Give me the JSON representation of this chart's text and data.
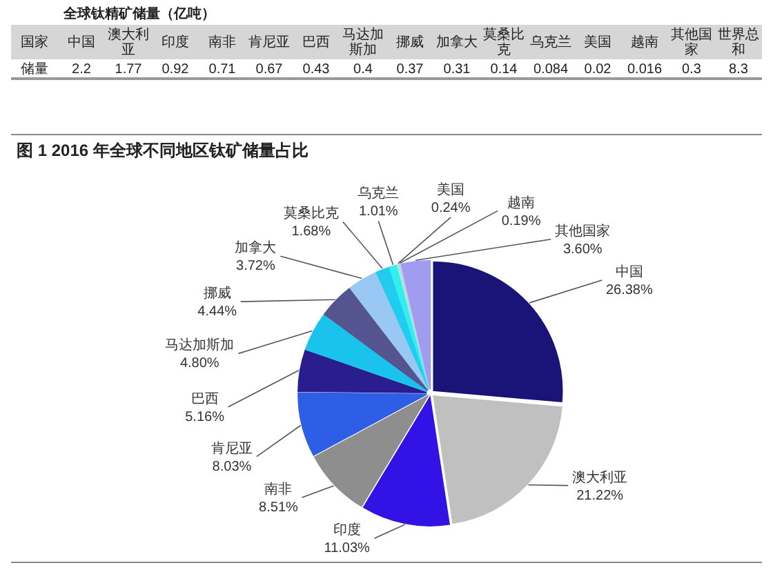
{
  "chart_data": [
    {
      "type": "other",
      "title": "全球钛精矿储量（亿吨）",
      "xlabel": "国家",
      "ylabel": "储量",
      "categories": [
        "中国",
        "澳大利亚",
        "印度",
        "南非",
        "肯尼亚",
        "巴西",
        "马达加斯加",
        "挪威",
        "加拿大",
        "莫桑比克",
        "乌克兰",
        "美国",
        "越南",
        "其他国家",
        "世界总和"
      ],
      "values": [
        2.2,
        1.77,
        0.92,
        0.71,
        0.67,
        0.43,
        0.4,
        0.37,
        0.31,
        0.14,
        0.084,
        0.02,
        0.016,
        0.3,
        8.3
      ],
      "data_labels": true
    },
    {
      "type": "pie",
      "title": "图 1 2016 年全球不同地区钛矿储量占比",
      "categories": [
        "中国",
        "澳大利亚",
        "印度",
        "南非",
        "肯尼亚",
        "巴西",
        "马达加斯加",
        "挪威",
        "加拿大",
        "莫桑比克",
        "乌克兰",
        "美国",
        "越南",
        "其他国家"
      ],
      "values": [
        26.38,
        21.22,
        11.03,
        8.51,
        8.03,
        5.16,
        4.8,
        4.44,
        3.72,
        1.68,
        1.01,
        0.24,
        0.19,
        3.6
      ],
      "colors": [
        "#1b1478",
        "#c0c0c0",
        "#3312e6",
        "#8e8e8e",
        "#2f5ee6",
        "#2a1d8f",
        "#19c3ec",
        "#545490",
        "#99c8f4",
        "#22ccee",
        "#33eeee",
        "#9ff0d8",
        "#c8c8f0",
        "#a09cf0"
      ],
      "value_labels": [
        "26.38%",
        "21.22%",
        "11.03%",
        "8.51%",
        "8.03%",
        "5.16%",
        "4.80%",
        "4.44%",
        "3.72%",
        "1.68%",
        "1.01%",
        "0.24%",
        "0.19%",
        "3.60%"
      ]
    }
  ]
}
